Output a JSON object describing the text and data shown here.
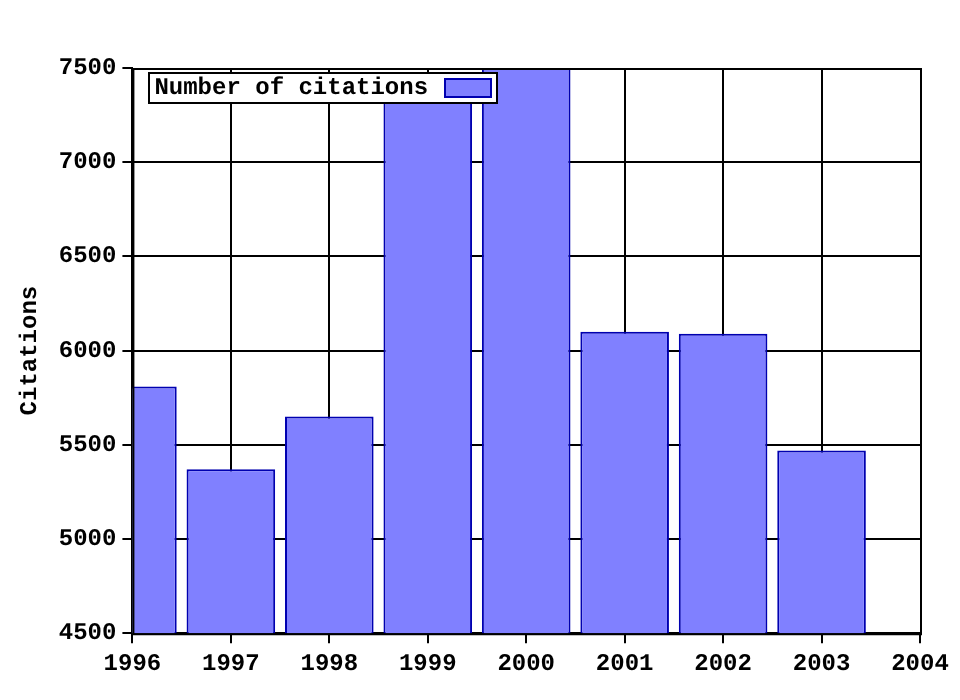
{
  "chart_data": {
    "type": "bar",
    "ylabel": "Citations",
    "x": [
      1996,
      1997,
      1998,
      1999,
      2000,
      2001,
      2002,
      2003
    ],
    "series": [
      {
        "name": "Number of citations",
        "color": "#8080ff",
        "values": [
          5810,
          5370,
          5650,
          7320,
          7500,
          6100,
          6090,
          5470
        ]
      }
    ],
    "xlim": [
      1996,
      2004
    ],
    "xticks": [
      1996,
      1997,
      1998,
      1999,
      2000,
      2001,
      2002,
      2003,
      2004
    ],
    "ylim": [
      4500,
      7500
    ],
    "yticks": [
      4500,
      5000,
      5500,
      6000,
      6500,
      7000,
      7500
    ],
    "grid": true,
    "legend": "top left"
  }
}
